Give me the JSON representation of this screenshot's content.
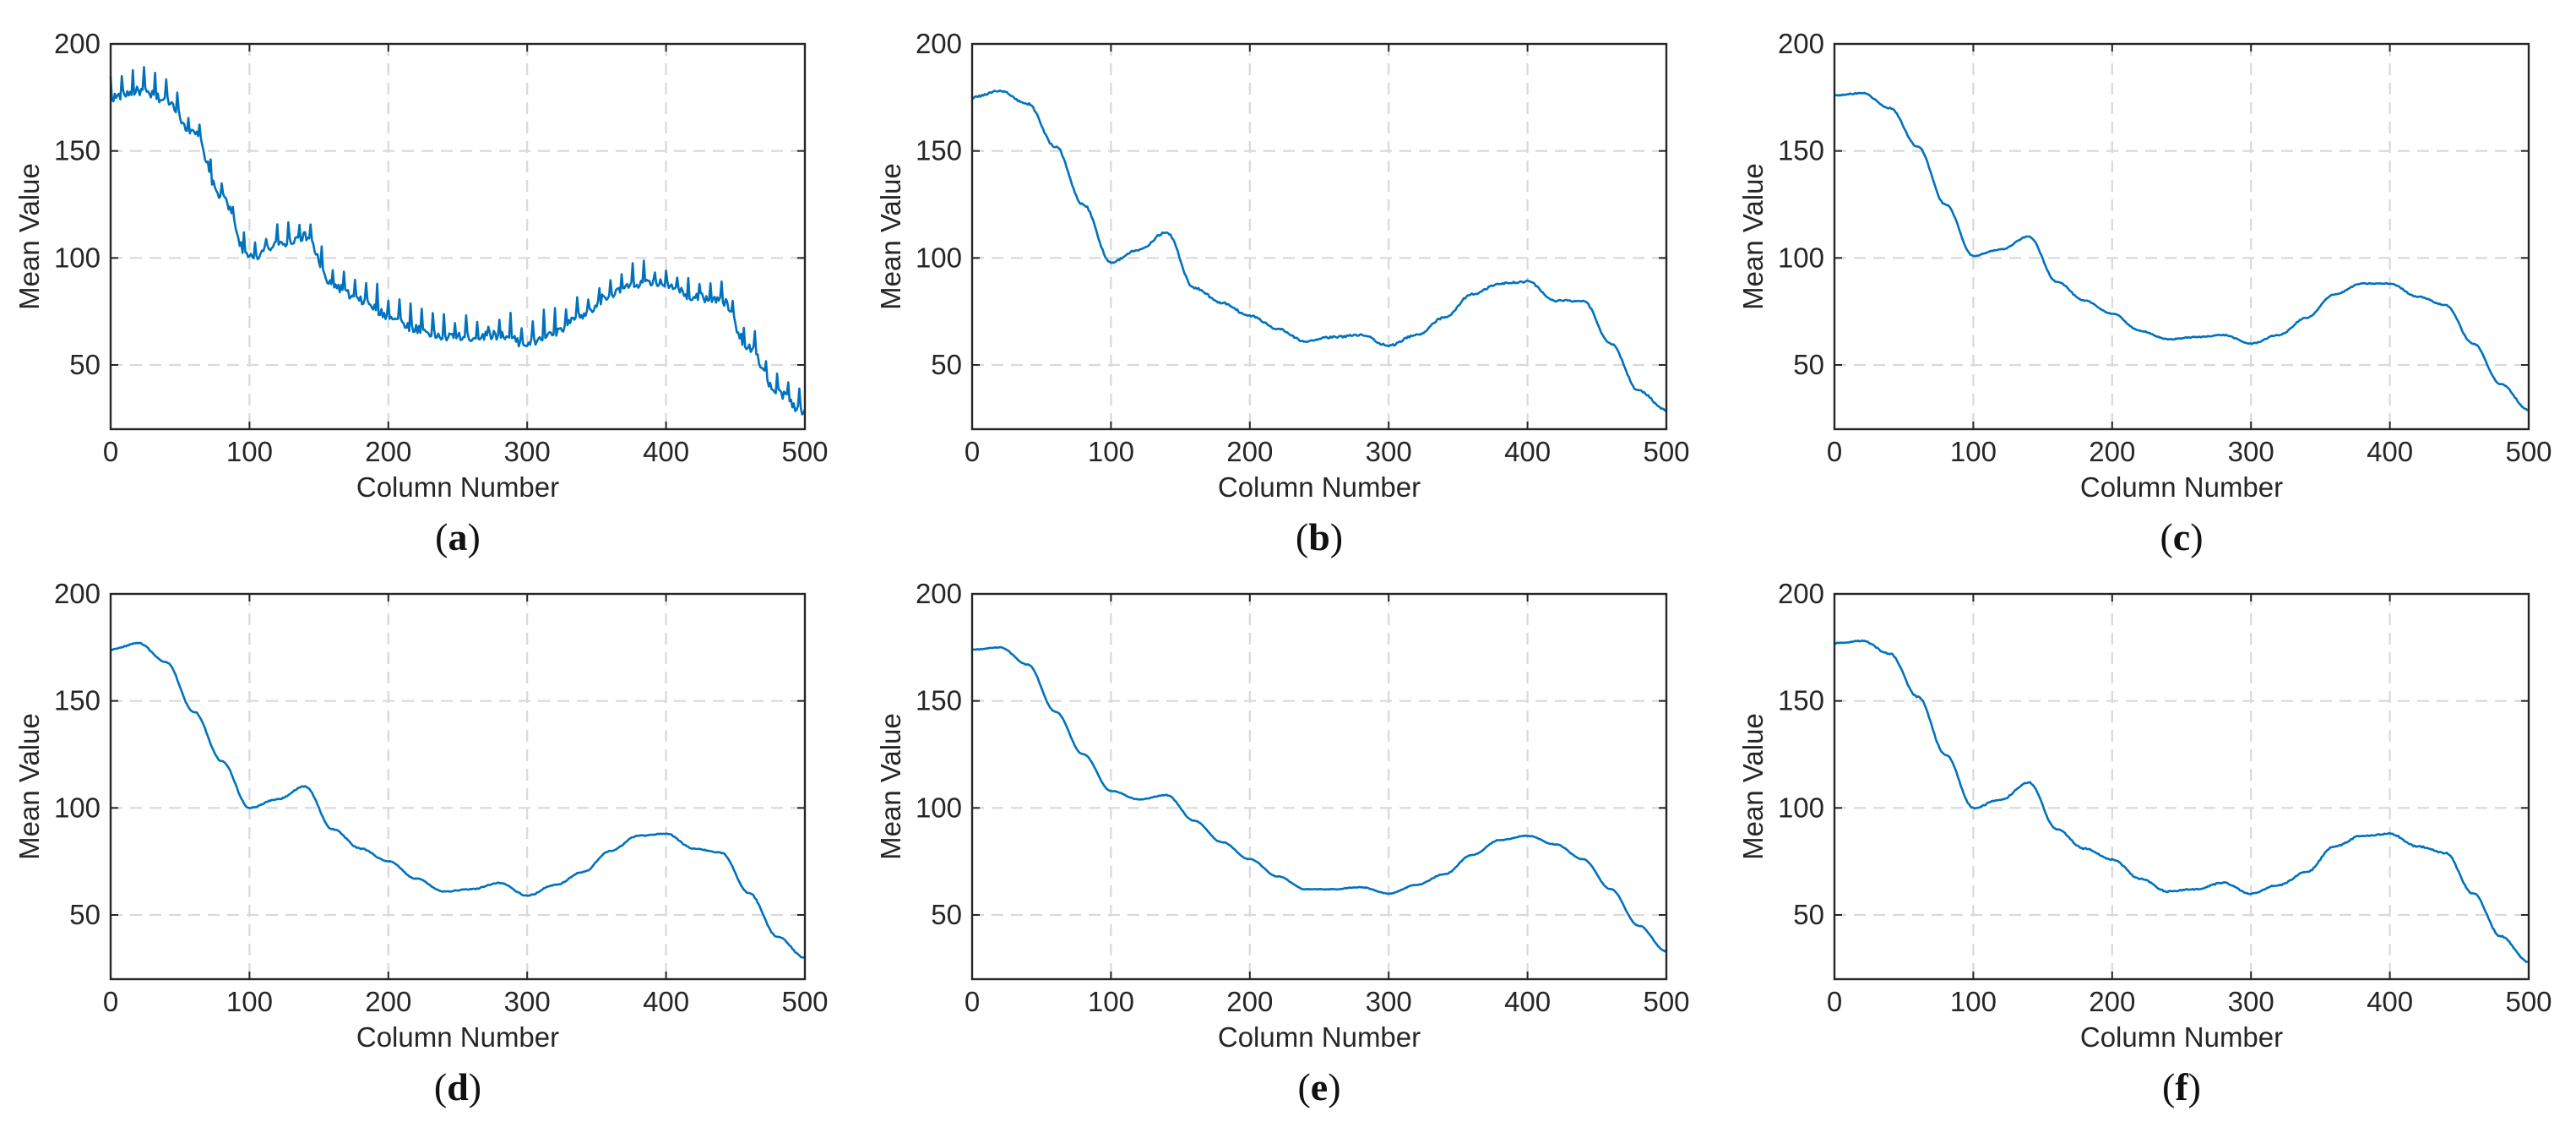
{
  "figure": {
    "line_color": "#0072BD",
    "grid_color": "#d9d9d9",
    "axis_color": "#262626"
  },
  "chart_data": [
    {
      "type": "line",
      "panel": "a",
      "xlabel": "Column Number",
      "ylabel": "Mean Value",
      "xlim": [
        0,
        500
      ],
      "ylim": [
        20,
        200
      ],
      "xticks": [
        0,
        100,
        200,
        300,
        400,
        500
      ],
      "yticks": [
        50,
        100,
        150,
        200
      ],
      "grid": true,
      "noise": 7,
      "series": [
        {
          "name": "mean value",
          "x": [
            0,
            20,
            40,
            60,
            80,
            100,
            120,
            140,
            160,
            180,
            200,
            220,
            240,
            260,
            280,
            300,
            320,
            340,
            360,
            380,
            400,
            420,
            440,
            460,
            480,
            500
          ],
          "values": [
            175,
            178,
            174,
            158,
            128,
            100,
            106,
            110,
            87,
            80,
            73,
            67,
            63,
            63,
            64,
            60,
            65,
            73,
            83,
            88,
            88,
            82,
            80,
            58,
            37,
            28
          ]
        }
      ]
    },
    {
      "type": "line",
      "panel": "b",
      "xlabel": "Column Number",
      "ylabel": "Mean Value",
      "xlim": [
        0,
        500
      ],
      "ylim": [
        20,
        200
      ],
      "xticks": [
        0,
        100,
        200,
        300,
        400,
        500
      ],
      "yticks": [
        50,
        100,
        150,
        200
      ],
      "grid": true,
      "noise": 1.5,
      "series": [
        {
          "name": "mean value",
          "x": [
            0,
            20,
            40,
            60,
            80,
            100,
            120,
            140,
            160,
            180,
            200,
            220,
            240,
            260,
            280,
            300,
            320,
            340,
            360,
            380,
            400,
            420,
            440,
            460,
            480,
            500
          ],
          "values": [
            175,
            178,
            172,
            152,
            125,
            98,
            104,
            112,
            86,
            79,
            73,
            67,
            61,
            63,
            64,
            59,
            64,
            72,
            83,
            88,
            89,
            80,
            80,
            60,
            38,
            29
          ]
        }
      ]
    },
    {
      "type": "line",
      "panel": "c",
      "xlabel": "Column Number",
      "ylabel": "Mean Value",
      "xlim": [
        0,
        500
      ],
      "ylim": [
        20,
        200
      ],
      "xticks": [
        0,
        100,
        200,
        300,
        400,
        500
      ],
      "yticks": [
        50,
        100,
        150,
        200
      ],
      "grid": true,
      "noise": 0.8,
      "series": [
        {
          "name": "mean value",
          "x": [
            0,
            20,
            40,
            60,
            80,
            100,
            120,
            140,
            160,
            180,
            200,
            220,
            240,
            260,
            280,
            300,
            320,
            340,
            360,
            380,
            400,
            420,
            440,
            460,
            480,
            500
          ],
          "values": [
            176,
            177,
            170,
            152,
            125,
            101,
            104,
            110,
            89,
            80,
            74,
            66,
            62,
            63,
            64,
            60,
            64,
            72,
            83,
            88,
            88,
            82,
            78,
            60,
            41,
            29
          ]
        }
      ]
    },
    {
      "type": "line",
      "panel": "d",
      "xlabel": "Column Number",
      "ylabel": "Mean Value",
      "xlim": [
        0,
        500
      ],
      "ylim": [
        20,
        200
      ],
      "xticks": [
        0,
        100,
        200,
        300,
        400,
        500
      ],
      "yticks": [
        50,
        100,
        150,
        200
      ],
      "grid": true,
      "noise": 0.8,
      "series": [
        {
          "name": "mean value",
          "x": [
            0,
            20,
            40,
            60,
            80,
            100,
            120,
            140,
            160,
            180,
            200,
            220,
            240,
            260,
            280,
            300,
            320,
            340,
            360,
            380,
            400,
            420,
            440,
            460,
            480,
            500
          ],
          "values": [
            174,
            177,
            168,
            145,
            122,
            100,
            104,
            110,
            90,
            81,
            75,
            67,
            61,
            62,
            65,
            59,
            64,
            70,
            80,
            87,
            88,
            81,
            79,
            60,
            40,
            30
          ]
        }
      ]
    },
    {
      "type": "line",
      "panel": "e",
      "xlabel": "Column Number",
      "ylabel": "Mean Value",
      "xlim": [
        0,
        500
      ],
      "ylim": [
        20,
        200
      ],
      "xticks": [
        0,
        100,
        200,
        300,
        400,
        500
      ],
      "yticks": [
        50,
        100,
        150,
        200
      ],
      "grid": true,
      "noise": 0.5,
      "series": [
        {
          "name": "mean value",
          "x": [
            0,
            20,
            40,
            60,
            80,
            100,
            120,
            140,
            160,
            180,
            200,
            220,
            240,
            260,
            280,
            300,
            320,
            340,
            360,
            380,
            400,
            420,
            440,
            460,
            480,
            500
          ],
          "values": [
            174,
            175,
            167,
            145,
            125,
            108,
            104,
            106,
            94,
            84,
            76,
            68,
            62,
            62,
            63,
            60,
            64,
            69,
            78,
            85,
            87,
            83,
            76,
            62,
            45,
            33
          ]
        }
      ]
    },
    {
      "type": "line",
      "panel": "f",
      "xlabel": "Column Number",
      "ylabel": "Mean Value",
      "xlim": [
        0,
        500
      ],
      "ylim": [
        20,
        200
      ],
      "xticks": [
        0,
        100,
        200,
        300,
        400,
        500
      ],
      "yticks": [
        50,
        100,
        150,
        200
      ],
      "grid": true,
      "noise": 1,
      "series": [
        {
          "name": "mean value",
          "x": [
            0,
            20,
            40,
            60,
            80,
            100,
            120,
            140,
            160,
            180,
            200,
            220,
            240,
            260,
            280,
            300,
            320,
            340,
            360,
            380,
            400,
            420,
            440,
            460,
            480,
            500
          ],
          "values": [
            177,
            178,
            172,
            152,
            125,
            100,
            104,
            112,
            90,
            81,
            76,
            67,
            61,
            62,
            65,
            60,
            64,
            70,
            82,
            87,
            88,
            82,
            79,
            60,
            40,
            28
          ]
        }
      ]
    }
  ],
  "panels": [
    {
      "label": "a",
      "open": "(",
      "close": ")"
    },
    {
      "label": "b",
      "open": "(",
      "close": ")"
    },
    {
      "label": "c",
      "open": "(",
      "close": ")"
    },
    {
      "label": "d",
      "open": "(",
      "close": ")"
    },
    {
      "label": "e",
      "open": "(",
      "close": ")"
    },
    {
      "label": "f",
      "open": "(",
      "close": ")"
    }
  ]
}
